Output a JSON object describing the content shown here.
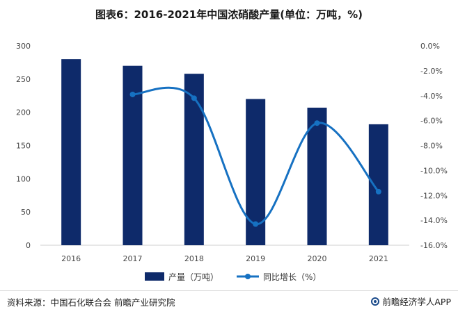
{
  "title": "图表6：2016-2021年中国浓硝酸产量(单位：万吨，%)",
  "chart_data": {
    "type": "bar",
    "categories": [
      "2016",
      "2017",
      "2018",
      "2019",
      "2020",
      "2021"
    ],
    "series": [
      {
        "name": "产量（万吨）",
        "kind": "bar",
        "axis": "left",
        "values": [
          280,
          270,
          258,
          220,
          207,
          182
        ]
      },
      {
        "name": "同比增长（%）",
        "kind": "line",
        "axis": "right",
        "values": [
          null,
          -3.9,
          -4.2,
          -14.3,
          -6.2,
          -11.7
        ]
      }
    ],
    "left_axis": {
      "ylim": [
        0,
        300
      ],
      "ticks": [
        0,
        50,
        100,
        150,
        200,
        250,
        300
      ]
    },
    "right_axis": {
      "ylim": [
        -16,
        0
      ],
      "ticks": [
        "0.0%",
        "-2.0%",
        "-4.0%",
        "-6.0%",
        "-8.0%",
        "-10.0%",
        "-12.0%",
        "-14.0%",
        "-16.0%"
      ]
    },
    "colors": {
      "bar": "#0e2a6a",
      "line": "#1671c2"
    },
    "legend_position": "bottom",
    "grid": false
  },
  "footer": {
    "source": "资料来源：中国石化联合会 前瞻产业研究院",
    "brand": "前瞻经济学人APP"
  }
}
